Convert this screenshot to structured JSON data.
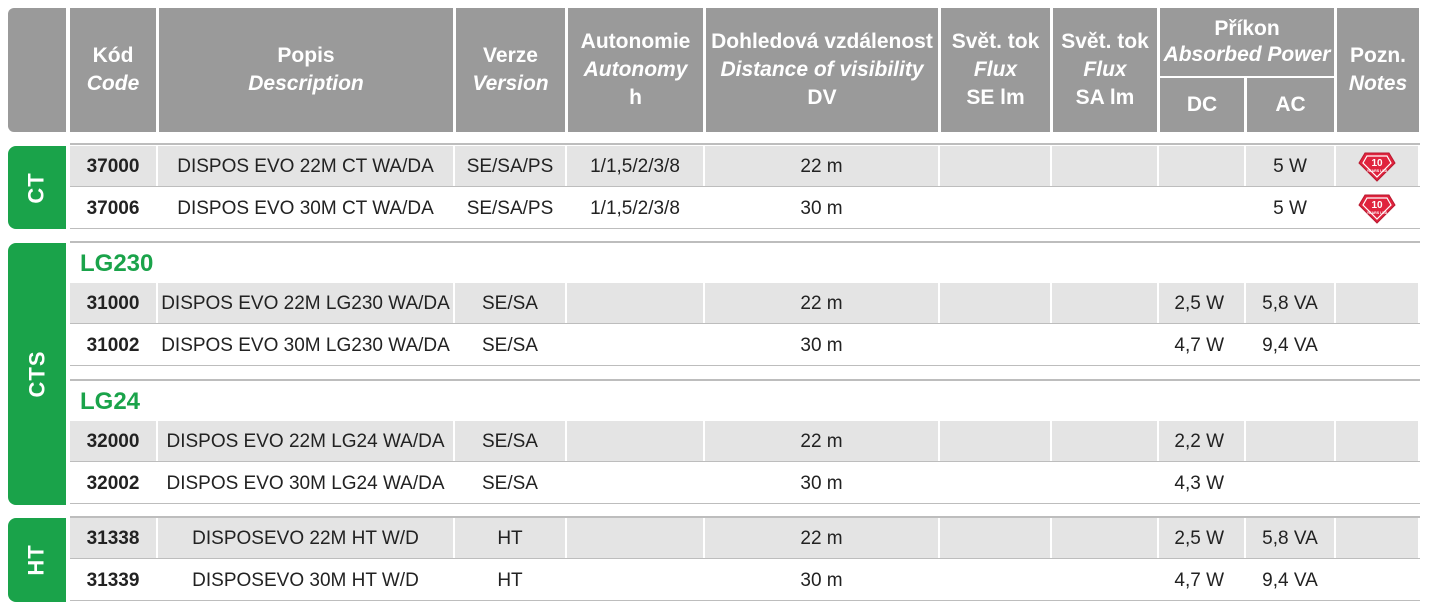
{
  "header": {
    "code": [
      "Kód",
      "Code"
    ],
    "description": [
      "Popis",
      "Description"
    ],
    "version": [
      "Verze",
      "Version"
    ],
    "autonomy": [
      "Autonomie",
      "Autonomy",
      "h"
    ],
    "distance": [
      "Dohledová vzdálenost",
      "Distance of visibility",
      "DV"
    ],
    "flux_se": [
      "Svět. tok",
      "Flux",
      "SE lm"
    ],
    "flux_sa": [
      "Svět. tok",
      "Flux",
      "SA lm"
    ],
    "power": [
      "Příkon",
      "Absorbed Power"
    ],
    "power_dc": "DC",
    "power_ac": "AC",
    "notes": [
      "Pozn.",
      "Notes"
    ]
  },
  "groups": [
    {
      "label": "CT"
    },
    {
      "label": "CTS"
    },
    {
      "label": "HT"
    }
  ],
  "subgroups": [
    "LG230",
    "LG24"
  ],
  "badge": {
    "icon": "ten-years-led-badge-icon",
    "number": "10",
    "text": "YEARS LED",
    "color": "#e0233d"
  },
  "rows": [
    {
      "code": "37000",
      "description": "DISPOS EVO 22M CT WA/DA",
      "version": "SE/SA/PS",
      "autonomy": "1/1,5/2/3/8",
      "distance": "22 m",
      "flux_se": "",
      "flux_sa": "",
      "dc": "",
      "ac": "5 W",
      "note": "badge"
    },
    {
      "code": "37006",
      "description": "DISPOS EVO 30M CT WA/DA",
      "version": "SE/SA/PS",
      "autonomy": "1/1,5/2/3/8",
      "distance": "30 m",
      "flux_se": "",
      "flux_sa": "",
      "dc": "",
      "ac": "5 W",
      "note": "badge"
    },
    {
      "code": "31000",
      "description": "DISPOS EVO 22M LG230 WA/DA",
      "version": "SE/SA",
      "autonomy": "",
      "distance": "22 m",
      "flux_se": "",
      "flux_sa": "",
      "dc": "2,5 W",
      "ac": "5,8 VA",
      "note": ""
    },
    {
      "code": "31002",
      "description": "DISPOS EVO 30M LG230 WA/DA",
      "version": "SE/SA",
      "autonomy": "",
      "distance": "30 m",
      "flux_se": "",
      "flux_sa": "",
      "dc": "4,7 W",
      "ac": "9,4 VA",
      "note": ""
    },
    {
      "code": "32000",
      "description": "DISPOS EVO 22M LG24 WA/DA",
      "version": "SE/SA",
      "autonomy": "",
      "distance": "22 m",
      "flux_se": "",
      "flux_sa": "",
      "dc": "2,2 W",
      "ac": "",
      "note": ""
    },
    {
      "code": "32002",
      "description": "DISPOS EVO 30M LG24 WA/DA",
      "version": "SE/SA",
      "autonomy": "",
      "distance": "30 m",
      "flux_se": "",
      "flux_sa": "",
      "dc": "4,3 W",
      "ac": "",
      "note": ""
    },
    {
      "code": "31338",
      "description": "DISPOSEVO 22M HT W/D",
      "version": "HT",
      "autonomy": "",
      "distance": "22 m",
      "flux_se": "",
      "flux_sa": "",
      "dc": "2,5 W",
      "ac": "5,8 VA",
      "note": ""
    },
    {
      "code": "31339",
      "description": "DISPOSEVO 30M HT W/D",
      "version": "HT",
      "autonomy": "",
      "distance": "30 m",
      "flux_se": "",
      "flux_sa": "",
      "dc": "4,7 W",
      "ac": "9,4 VA",
      "note": ""
    }
  ]
}
